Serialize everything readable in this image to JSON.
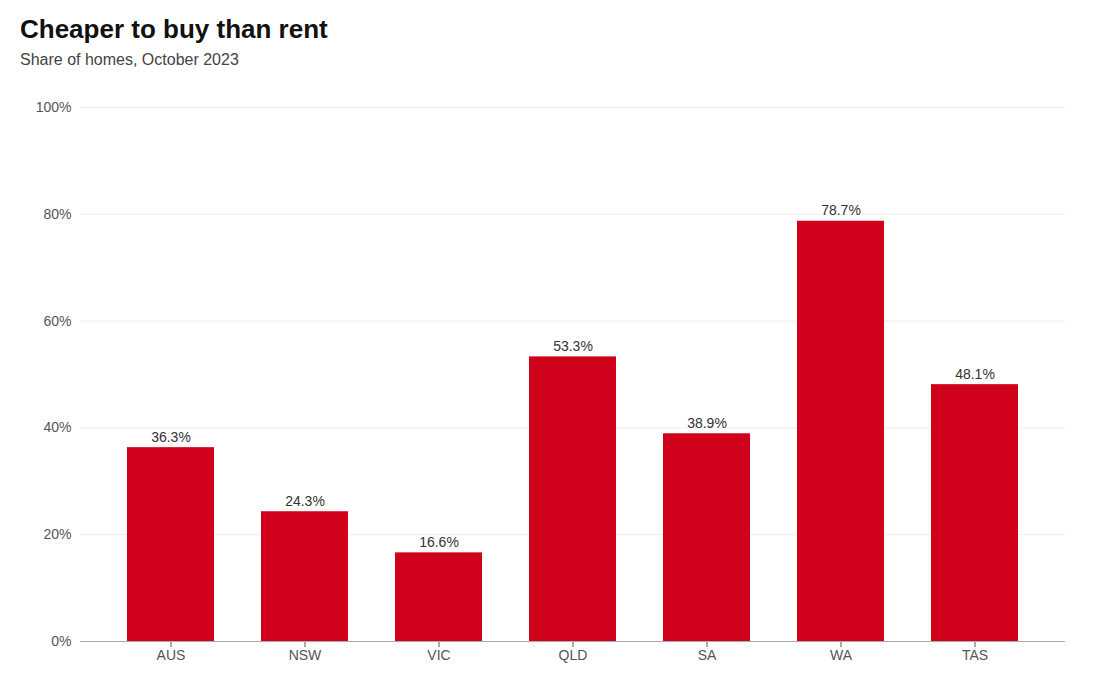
{
  "chart_data": {
    "type": "bar",
    "title": "Cheaper to buy than rent",
    "subtitle": "Share of homes, October 2023",
    "categories": [
      "AUS",
      "NSW",
      "VIC",
      "QLD",
      "SA",
      "WA",
      "TAS"
    ],
    "values": [
      36.3,
      24.3,
      16.6,
      53.3,
      38.9,
      78.7,
      48.1
    ],
    "value_labels": [
      "36.3%",
      "24.3%",
      "16.6%",
      "53.3%",
      "38.9%",
      "78.7%",
      "48.1%"
    ],
    "data_labels": true,
    "color": "#D0021B",
    "ylim": [
      0,
      100
    ],
    "yticks": [
      {
        "value": 0,
        "label": "0%"
      },
      {
        "value": 20,
        "label": "20%"
      },
      {
        "value": 40,
        "label": "40%"
      },
      {
        "value": 60,
        "label": "60%"
      },
      {
        "value": 80,
        "label": "80%"
      },
      {
        "value": 100,
        "label": "100%"
      }
    ],
    "grid": true
  }
}
